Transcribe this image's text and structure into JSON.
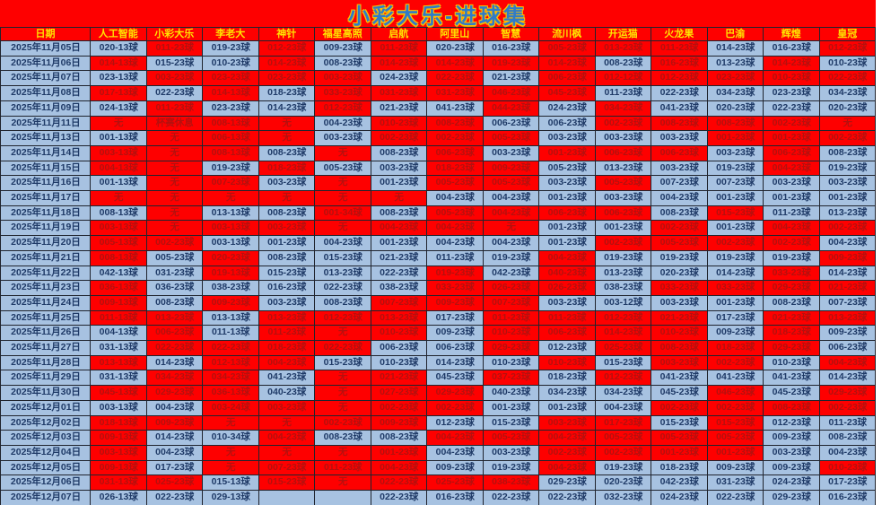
{
  "title": "小彩大乐-进球集",
  "colors": {
    "sheet_background": "#fe0000",
    "header_text": "#ffe400",
    "title_text": "#2f7bc8",
    "title_outline": "#ffc000",
    "hit_cell_background": "#a7c2e1",
    "hit_cell_text": "#1f3a67",
    "miss_cell_background": "#fe0000",
    "miss_cell_text": "#b5100e",
    "gridline": "#20242e"
  },
  "legend": {
    "b": "blue highlighted cell",
    "r": "red cell"
  },
  "table": {
    "columns": [
      "日期",
      "人工智能",
      "小彩大乐",
      "李老大",
      "神针",
      "福星高照",
      "启航",
      "阿里山",
      "智慧",
      "流川枫",
      "开运猫",
      "火龙果",
      "巴渝",
      "辉煌",
      "皇冠"
    ],
    "rows": [
      {
        "date": "2025年11月05日",
        "cells": [
          "020-13球|b",
          "011-23球|r",
          "019-23球|b",
          "012-23球|r",
          "009-23球|b",
          "011-23球|r",
          "020-23球|b",
          "016-23球|b",
          "005-23球|r",
          "013-23球|r",
          "011-23球|r",
          "014-23球|b",
          "016-23球|b",
          "012-23球|r"
        ]
      },
      {
        "date": "2025年11月06日",
        "cells": [
          "014-13球|r",
          "015-23球|b",
          "010-23球|b",
          "014-23球|r",
          "008-23球|b",
          "014-23球|r",
          "014-23球|r",
          "019-23球|r",
          "014-23球|r",
          "008-23球|b",
          "016-23球|r",
          "013-23球|b",
          "014-23球|r",
          "010-23球|b"
        ]
      },
      {
        "date": "2025年11月07日",
        "cells": [
          "023-13球|b",
          "003-23球|r",
          "023-23球|r",
          "023-23球|r",
          "003-23球|r",
          "024-23球|b",
          "022-23球|r",
          "021-23球|b",
          "006-23球|r",
          "012-12球|r",
          "012-23球|r",
          "023-23球|r",
          "010-23球|r",
          "022-23球|r"
        ]
      },
      {
        "date": "2025年11月08日",
        "cells": [
          "017-13球|r",
          "022-23球|b",
          "014-13球|r",
          "018-23球|b",
          "033-23球|r",
          "031-23球|r",
          "031-23球|r",
          "046-23球|r",
          "045-23球|r",
          "011-23球|b",
          "022-23球|b",
          "034-23球|b",
          "023-23球|b",
          "034-23球|b"
        ]
      },
      {
        "date": "2025年11月09日",
        "cells": [
          "024-13球|b",
          "011-23球|r",
          "023-23球|b",
          "014-23球|b",
          "012-23球|r",
          "021-23球|b",
          "041-23球|b",
          "044-23球|r",
          "024-23球|b",
          "034-23球|r",
          "041-23球|b",
          "020-23球|b",
          "022-23球|b",
          "020-23球|b"
        ]
      },
      {
        "date": "2025年11月11日",
        "cells": [
          "无|r",
          "杯赛休息|r",
          "008-13球|r",
          "无|r",
          "004-23球|b",
          "010-23球|r",
          "008-23球|r",
          "006-23球|b",
          "006-23球|b",
          "002-23球|r",
          "008-23球|r",
          "008-23球|r",
          "002-23球|r",
          "无|r"
        ]
      },
      {
        "date": "2025年11月13日",
        "cells": [
          "001-13球|b",
          "无|r",
          "006-13球|r",
          "无|r",
          "003-23球|b",
          "002-23球|r",
          "002-23球|r",
          "005-23球|r",
          "003-23球|b",
          "003-23球|b",
          "003-23球|b",
          "001-23球|r",
          "001-23球|r",
          "002-23球|r"
        ]
      },
      {
        "date": "2025年11月14日",
        "cells": [
          "003-13球|r",
          "无|r",
          "008-13球|r",
          "008-23球|b",
          "无|r",
          "008-23球|b",
          "006-23球|r",
          "003-23球|b",
          "001-23球|r",
          "006-23球|r",
          "006-23球|r",
          "003-23球|b",
          "006-23球|r",
          "008-23球|b"
        ]
      },
      {
        "date": "2025年11月15日",
        "cells": [
          "004-13球|r",
          "无|r",
          "019-23球|b",
          "018-23球|r",
          "005-23球|b",
          "003-23球|b",
          "018-23球|r",
          "009-23球|r",
          "005-23球|b",
          "013-23球|b",
          "003-23球|b",
          "019-23球|b",
          "004-23球|r",
          "019-23球|b"
        ]
      },
      {
        "date": "2025年11月16日",
        "cells": [
          "001-13球|b",
          "无|r",
          "007-23球|r",
          "003-23球|b",
          "无|r",
          "001-23球|b",
          "005-23球|r",
          "005-23球|r",
          "003-23球|b",
          "005-23球|r",
          "007-23球|b",
          "007-23球|b",
          "003-23球|b",
          "003-23球|b"
        ]
      },
      {
        "date": "2025年11月17日",
        "cells": [
          "无|r",
          "无|r",
          "无|r",
          "无|r",
          "无|r",
          "无|r",
          "004-23球|b",
          "004-23球|b",
          "001-23球|b",
          "003-23球|b",
          "004-23球|b",
          "001-23球|b",
          "001-23球|b",
          "001-23球|b"
        ]
      },
      {
        "date": "2025年11月18日",
        "cells": [
          "008-13球|b",
          "无|r",
          "013-13球|b",
          "008-23球|b",
          "001-34球|r",
          "008-23球|b",
          "005-23球|r",
          "004-23球|r",
          "006-23球|r",
          "006-23球|r",
          "008-23球|b",
          "015-23球|r",
          "011-23球|b",
          "013-23球|b"
        ]
      },
      {
        "date": "2025年11月19日",
        "cells": [
          "003-13球|r",
          "无|r",
          "003-13球|r",
          "003-23球|r",
          "无|r",
          "004-23球|r",
          "004-23球|r",
          "无|r",
          "001-23球|b",
          "001-23球|b",
          "002-23球|r",
          "001-23球|b",
          "004-23球|r",
          "002-23球|r"
        ]
      },
      {
        "date": "2025年11月20日",
        "cells": [
          "005-13球|r",
          "002-23球|r",
          "003-13球|b",
          "001-23球|b",
          "004-23球|b",
          "001-23球|b",
          "004-23球|b",
          "004-23球|b",
          "001-23球|b",
          "002-23球|r",
          "005-23球|r",
          "002-23球|r",
          "002-23球|r",
          "004-23球|b"
        ]
      },
      {
        "date": "2025年11月21日",
        "cells": [
          "008-13球|r",
          "005-23球|b",
          "020-23球|r",
          "008-23球|b",
          "015-23球|b",
          "021-23球|b",
          "011-23球|b",
          "019-23球|b",
          "004-23球|r",
          "019-23球|b",
          "019-23球|b",
          "019-23球|b",
          "019-23球|b",
          "009-23球|r"
        ]
      },
      {
        "date": "2025年11月22日",
        "cells": [
          "042-13球|b",
          "031-23球|b",
          "019-13球|r",
          "015-23球|b",
          "013-23球|b",
          "022-23球|b",
          "019-23球|r",
          "042-23球|b",
          "040-23球|r",
          "013-23球|b",
          "020-23球|b",
          "014-23球|b",
          "033-23球|r",
          "014-23球|b"
        ]
      },
      {
        "date": "2025年11月23日",
        "cells": [
          "036-13球|r",
          "036-23球|b",
          "038-23球|b",
          "016-23球|b",
          "022-23球|b",
          "038-23球|b",
          "033-23球|r",
          "026-23球|r",
          "026-23球|r",
          "038-23球|b",
          "033-23球|r",
          "033-23球|r",
          "029-23球|r",
          "021-23球|r"
        ]
      },
      {
        "date": "2025年11月24日",
        "cells": [
          "009-13球|r",
          "008-23球|b",
          "009-23球|r",
          "003-23球|b",
          "008-23球|b",
          "007-23球|r",
          "009-23球|r",
          "007-23球|r",
          "003-23球|b",
          "003-12球|b",
          "003-23球|b",
          "001-23球|b",
          "008-23球|b",
          "007-23球|b"
        ]
      },
      {
        "date": "2025年11月25日",
        "cells": [
          "011-13球|r",
          "013-23球|r",
          "013-13球|b",
          "013-23球|r",
          "012-23球|r",
          "013-23球|r",
          "017-23球|b",
          "011-23球|r",
          "011-23球|r",
          "012-23球|r",
          "021-23球|r",
          "017-23球|b",
          "021-23球|r",
          "013-23球|r"
        ]
      },
      {
        "date": "2025年11月26日",
        "cells": [
          "004-13球|b",
          "006-23球|r",
          "011-13球|b",
          "011-23球|r",
          "无|r",
          "010-23球|r",
          "009-23球|b",
          "010-23球|r",
          "006-23球|r",
          "014-23球|r",
          "010-23球|r",
          "009-23球|b",
          "018-23球|r",
          "009-23球|b"
        ]
      },
      {
        "date": "2025年11月27日",
        "cells": [
          "031-13球|b",
          "022-23球|r",
          "022-23球|r",
          "018-23球|r",
          "022-23球|r",
          "006-23球|b",
          "006-23球|b",
          "029-23球|r",
          "012-23球|b",
          "025-23球|r",
          "008-23球|r",
          "018-23球|r",
          "029-23球|r",
          "006-23球|b"
        ]
      },
      {
        "date": "2025年11月28日",
        "cells": [
          "013-13球|r",
          "014-23球|b",
          "012-13球|r",
          "004-23球|r",
          "015-23球|b",
          "010-23球|b",
          "014-23球|b",
          "010-23球|b",
          "010-23球|r",
          "015-23球|b",
          "003-23球|r",
          "002-23球|r",
          "010-23球|b",
          "004-23球|r"
        ]
      },
      {
        "date": "2025年11月29日",
        "cells": [
          "031-13球|b",
          "034-23球|r",
          "034-23球|r",
          "041-23球|b",
          "无|r",
          "021-23球|r",
          "045-23球|b",
          "037-23球|r",
          "018-23球|b",
          "012-23球|r",
          "041-23球|b",
          "041-23球|b",
          "041-23球|b",
          "014-23球|b"
        ]
      },
      {
        "date": "2025年11月30日",
        "cells": [
          "045-13球|r",
          "029-23球|r",
          "036-13球|r",
          "040-23球|b",
          "无|r",
          "027-23球|r",
          "029-23球|r",
          "040-23球|b",
          "034-23球|b",
          "034-23球|b",
          "045-23球|b",
          "046-23球|r",
          "045-23球|b",
          "029-23球|r"
        ]
      },
      {
        "date": "2025年12月01日",
        "cells": [
          "003-13球|b",
          "004-23球|b",
          "003-24球|r",
          "003-23球|r",
          "无|r",
          "002-23球|r",
          "002-23球|r",
          "001-23球|b",
          "001-23球|b",
          "004-23球|b",
          "002-23球|r",
          "002-23球|r",
          "008-23球|r",
          "002-23球|r"
        ]
      },
      {
        "date": "2025年12月02日",
        "cells": [
          "018-13球|r",
          "009-23球|r",
          "无|r",
          "无|r",
          "002-23球|r",
          "009-23球|r",
          "012-23球|b",
          "015-23球|b",
          "003-23球|r",
          "017-23球|r",
          "015-23球|b",
          "015-23球|r",
          "012-23球|b",
          "011-23球|b"
        ]
      },
      {
        "date": "2025年12月03日",
        "cells": [
          "009-13球|r",
          "014-23球|b",
          "010-34球|b",
          "004-23球|r",
          "008-23球|b",
          "008-23球|b",
          "004-23球|r",
          "005-23球|r",
          "004-23球|r",
          "005-23球|r",
          "005-23球|r",
          "005-23球|r",
          "009-23球|b",
          "008-23球|b"
        ]
      },
      {
        "date": "2025年12月04日",
        "cells": [
          "003-13球|r",
          "004-23球|b",
          "无|r",
          "无|r",
          "无|r",
          "001-23球|r",
          "004-23球|b",
          "003-23球|b",
          "002-23球|r",
          "002-23球|r",
          "001-23球|r",
          "001-23球|r",
          "003-23球|b",
          "004-23球|b"
        ]
      },
      {
        "date": "2025年12月05日",
        "cells": [
          "009-13球|r",
          "017-23球|b",
          "无|r",
          "007-23球|r",
          "011-23球|r",
          "004-23球|r",
          "009-23球|b",
          "019-23球|b",
          "004-23球|r",
          "019-23球|b",
          "018-23球|b",
          "009-23球|b",
          "009-23球|b",
          "010-23球|r"
        ]
      },
      {
        "date": "2025年12月06日",
        "cells": [
          "031-13球|r",
          "025-23球|r",
          "015-13球|b",
          "015-23球|r",
          "无|r",
          "022-23球|r",
          "025-23球|r",
          "038-23球|r",
          "029-23球|b",
          "020-23球|b",
          "042-23球|b",
          "031-23球|b",
          "024-23球|b",
          "017-23球|b"
        ]
      },
      {
        "date": "2025年12月07日",
        "cells": [
          "026-13球|b",
          "022-23球|b",
          "029-13球|b",
          "|b",
          "|b",
          "022-23球|b",
          "016-23球|b",
          "022-23球|b",
          "022-23球|b",
          "032-23球|b",
          "024-23球|b",
          "022-23球|b",
          "029-23球|b",
          "016-23球|b"
        ]
      }
    ]
  }
}
